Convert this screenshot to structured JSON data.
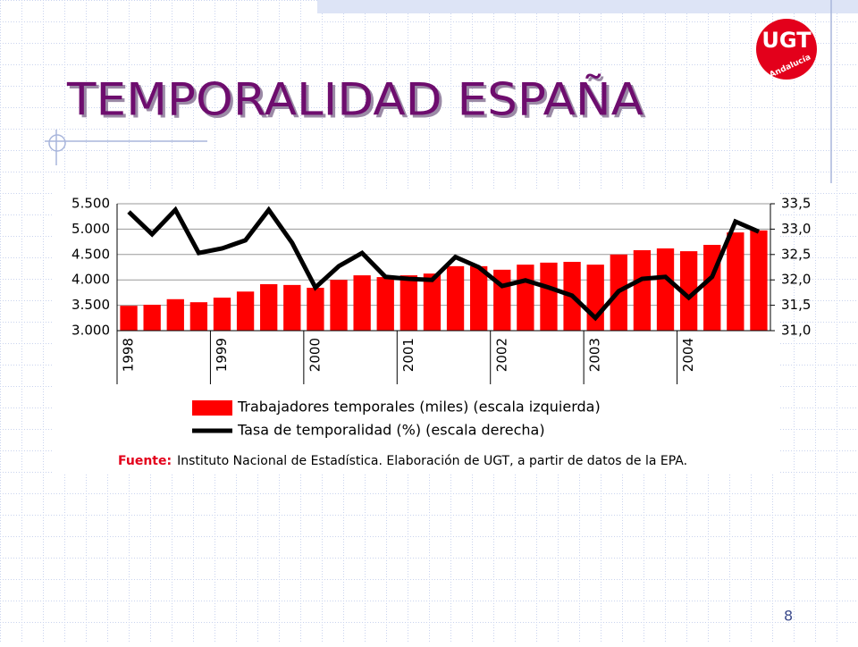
{
  "slide": {
    "title": "TEMPORALIDAD ESPAÑA",
    "page_number": "8",
    "logo": {
      "text": "UGT",
      "subtext": "Andalucía"
    }
  },
  "chart_data": {
    "type": "bar_line",
    "categories": [
      "1998",
      null,
      null,
      null,
      "1999",
      null,
      null,
      null,
      "2000",
      null,
      null,
      null,
      "2001",
      null,
      null,
      null,
      "2002",
      null,
      null,
      null,
      "2003",
      null,
      null,
      null,
      "2004",
      null,
      null,
      null
    ],
    "series": [
      {
        "name": "Trabajadores temporales (miles) (escala izquierda)",
        "color": "#ff0000",
        "type": "bar",
        "values": [
          3490,
          3510,
          3620,
          3560,
          3650,
          3770,
          3915,
          3900,
          3845,
          4000,
          4090,
          4055,
          4090,
          4125,
          4270,
          4270,
          4200,
          4300,
          4340,
          4355,
          4300,
          4500,
          4585,
          4620,
          4565,
          4690,
          4935,
          4975
        ]
      },
      {
        "name": "Tasa de temporalidad (%) (escala derecha)",
        "color": "#000000",
        "type": "line",
        "axis": "y2",
        "values": [
          33.34,
          32.9,
          33.38,
          32.53,
          32.62,
          32.78,
          33.38,
          32.73,
          31.85,
          32.27,
          32.53,
          32.06,
          32.02,
          32.0,
          32.45,
          32.25,
          31.88,
          31.99,
          31.85,
          31.69,
          31.25,
          31.78,
          32.02,
          32.06,
          31.65,
          32.06,
          33.15,
          32.95
        ]
      }
    ],
    "ylim": [
      3000,
      5500
    ],
    "yticks": [
      {
        "value": 3000,
        "label": "3.000"
      },
      {
        "value": 3500,
        "label": "3.500"
      },
      {
        "value": 4000,
        "label": "4.000"
      },
      {
        "value": 4500,
        "label": "4.500"
      },
      {
        "value": 5000,
        "label": "5.000"
      },
      {
        "value": 5500,
        "label": "5.500"
      }
    ],
    "y2lim": [
      31.0,
      33.5
    ],
    "y2ticks": [
      {
        "value": 31.0,
        "label": "31,0"
      },
      {
        "value": 31.5,
        "label": "31,5"
      },
      {
        "value": 32.0,
        "label": "32,0"
      },
      {
        "value": 32.5,
        "label": "32,5"
      },
      {
        "value": 33.0,
        "label": "33,0"
      },
      {
        "value": 33.5,
        "label": "33,5"
      }
    ],
    "grid": true,
    "legend": "bottom",
    "source_label": "Fuente:",
    "source": "Instituto Nacional de Estadística. Elaboración de UGT, a partir de datos de la EPA."
  }
}
